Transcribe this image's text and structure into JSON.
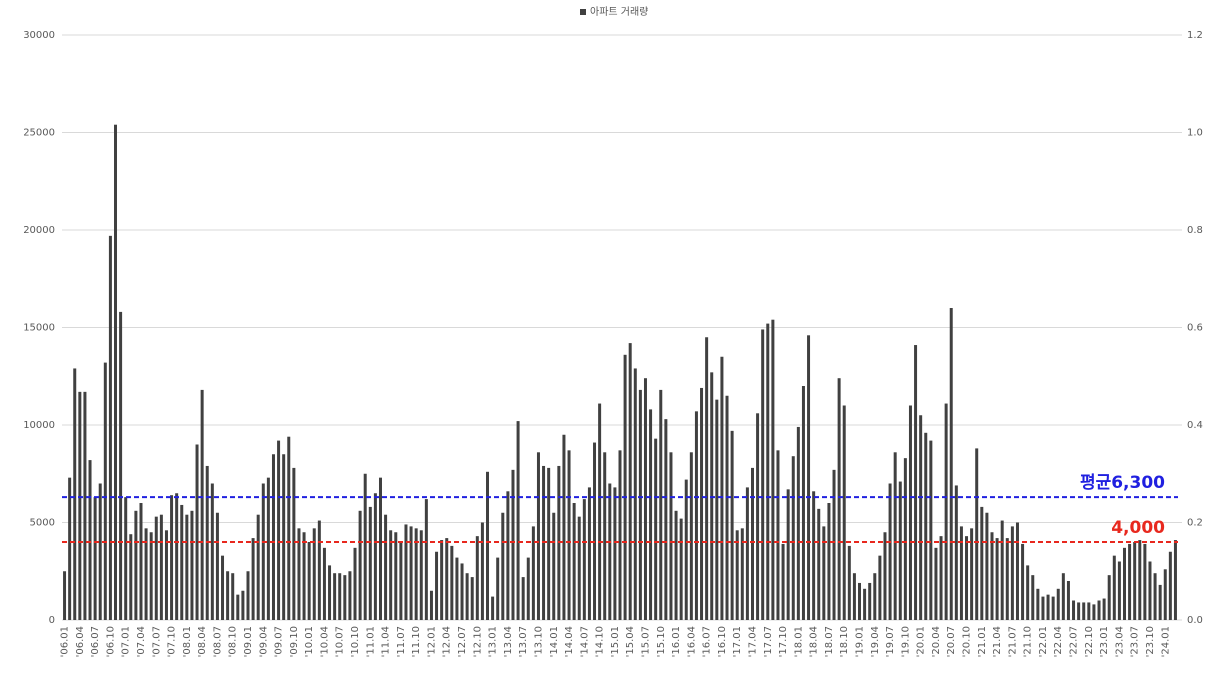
{
  "chart_data": {
    "type": "bar",
    "legend": "top",
    "grid": true,
    "ylim": [
      0,
      30000
    ],
    "yticks": [
      0,
      5000,
      10000,
      15000,
      20000,
      25000,
      30000
    ],
    "y2lim": [
      0,
      1.2
    ],
    "y2ticks": [
      {
        "value": 0,
        "label": "0.0"
      },
      0.2,
      0.4,
      0.6,
      0.8,
      {
        "value": 1,
        "label": "1.0"
      },
      1.2
    ],
    "categories": [
      "'06.01",
      null,
      null,
      "'06.04",
      null,
      null,
      "'06.07",
      null,
      null,
      "'06.10",
      null,
      null,
      "'07.01",
      null,
      null,
      "'07.04",
      null,
      null,
      "'07.07",
      null,
      null,
      "'07.10",
      null,
      null,
      "'08.01",
      null,
      null,
      "'08.04",
      null,
      null,
      "'08.07",
      null,
      null,
      "'08.10",
      null,
      null,
      "'09.01",
      null,
      null,
      "'09.04",
      null,
      null,
      "'09.07",
      null,
      null,
      "'09.10",
      null,
      null,
      "'10.01",
      null,
      null,
      "'10.04",
      null,
      null,
      "'10.07",
      null,
      null,
      "'10.10",
      null,
      null,
      "'11.01",
      null,
      null,
      "'11.04",
      null,
      null,
      "'11.07",
      null,
      null,
      "'11.10",
      null,
      null,
      "'12.01",
      null,
      null,
      "'12.04",
      null,
      null,
      "'12.07",
      null,
      null,
      "'12.10",
      null,
      null,
      "'13.01",
      null,
      null,
      "'13.04",
      null,
      null,
      "'13.07",
      null,
      null,
      "'13.10",
      null,
      null,
      "'14.01",
      null,
      null,
      "'14.04",
      null,
      null,
      "'14.07",
      null,
      null,
      "'14.10",
      null,
      null,
      "'15.01",
      null,
      null,
      "'15.04",
      null,
      null,
      "'15.07",
      null,
      null,
      "'15.10",
      null,
      null,
      "'16.01",
      null,
      null,
      "'16.04",
      null,
      null,
      "'16.07",
      null,
      null,
      "'16.10",
      null,
      null,
      "'17.01",
      null,
      null,
      "'17.04",
      null,
      null,
      "'17.07",
      null,
      null,
      "'17.10",
      null,
      null,
      "'18.01",
      null,
      null,
      "'18.04",
      null,
      null,
      "'18.07",
      null,
      null,
      "'18.10",
      null,
      null,
      "'19.01",
      null,
      null,
      "'19.04",
      null,
      null,
      "'19.07",
      null,
      null,
      "'19.10",
      null,
      null,
      "'20.01",
      null,
      null,
      "'20.04",
      null,
      null,
      "'20.07",
      null,
      null,
      "'20.10",
      null,
      null,
      "'21.01",
      null,
      null,
      "'21.04",
      null,
      null,
      "'21.07",
      null,
      null,
      "'21.10",
      null,
      null,
      "'22.01",
      null,
      null,
      "'22.04",
      null,
      null,
      "'22.07",
      null,
      null,
      "'22.10",
      null,
      null,
      "'23.01",
      null,
      null,
      "'23.04",
      null,
      null,
      "'23.07",
      null,
      null,
      "'23.10",
      null,
      null,
      "'24.01",
      null,
      null
    ],
    "series": [
      {
        "name": "아파트 거래량",
        "color": "#404040",
        "values": [
          2500,
          7300,
          12900,
          11700,
          11700,
          8200,
          6300,
          7000,
          13200,
          19700,
          25400,
          15800,
          6300,
          4400,
          5600,
          6000,
          4700,
          4500,
          5300,
          5400,
          4600,
          6400,
          6500,
          5900,
          5400,
          5600,
          9000,
          11800,
          7900,
          7000,
          5500,
          3300,
          2500,
          2400,
          1300,
          1500,
          2500,
          4200,
          5400,
          7000,
          7300,
          8500,
          9200,
          8500,
          9400,
          7800,
          4700,
          4500,
          4000,
          4700,
          5100,
          3700,
          2800,
          2400,
          2400,
          2300,
          2500,
          3700,
          5600,
          7500,
          5800,
          6500,
          7300,
          5400,
          4600,
          4500,
          4000,
          4900,
          4800,
          4700,
          4600,
          6200,
          1500,
          3500,
          4100,
          4200,
          3800,
          3200,
          2900,
          2400,
          2200,
          4300,
          5000,
          7600,
          1200,
          3200,
          5500,
          6600,
          7700,
          10200,
          2200,
          3200,
          4800,
          8600,
          7900,
          7800,
          5500,
          7900,
          9500,
          8700,
          6000,
          5300,
          6200,
          6800,
          9100,
          11100,
          8600,
          7000,
          6800,
          8700,
          13600,
          14200,
          12900,
          11800,
          12400,
          10800,
          9300,
          11800,
          10300,
          8600,
          5600,
          5200,
          7200,
          8600,
          10700,
          11900,
          14500,
          12700,
          11300,
          13500,
          11500,
          9700,
          4600,
          4700,
          6800,
          7800,
          10600,
          14900,
          15200,
          15400,
          8700,
          3900,
          6700,
          8400,
          9900,
          12000,
          14600,
          6600,
          5700,
          4800,
          6000,
          7700,
          12400,
          11000,
          3800,
          2400,
          1900,
          1600,
          1900,
          2400,
          3300,
          4500,
          7000,
          8600,
          7100,
          8300,
          11000,
          14100,
          10500,
          9600,
          9200,
          3700,
          4300,
          11100,
          16000,
          6900,
          4800,
          4300,
          4700,
          8800,
          5800,
          5500,
          4500,
          4200,
          5100,
          4200,
          4800,
          5000,
          3900,
          2800,
          2300,
          1600,
          1200,
          1300,
          1200,
          1600,
          2400,
          2000,
          1000,
          900,
          900,
          900,
          800,
          1000,
          1100,
          2300,
          3300,
          3000,
          3700,
          3900,
          4000,
          4100,
          3900,
          3000,
          2400,
          1800,
          2600,
          3500,
          4100
        ]
      }
    ],
    "reference_lines": [
      {
        "value": 6300,
        "label": "평균6,300",
        "color": "#2020e0"
      },
      {
        "value": 4000,
        "label": "4,000",
        "color": "#e8281e"
      }
    ]
  }
}
